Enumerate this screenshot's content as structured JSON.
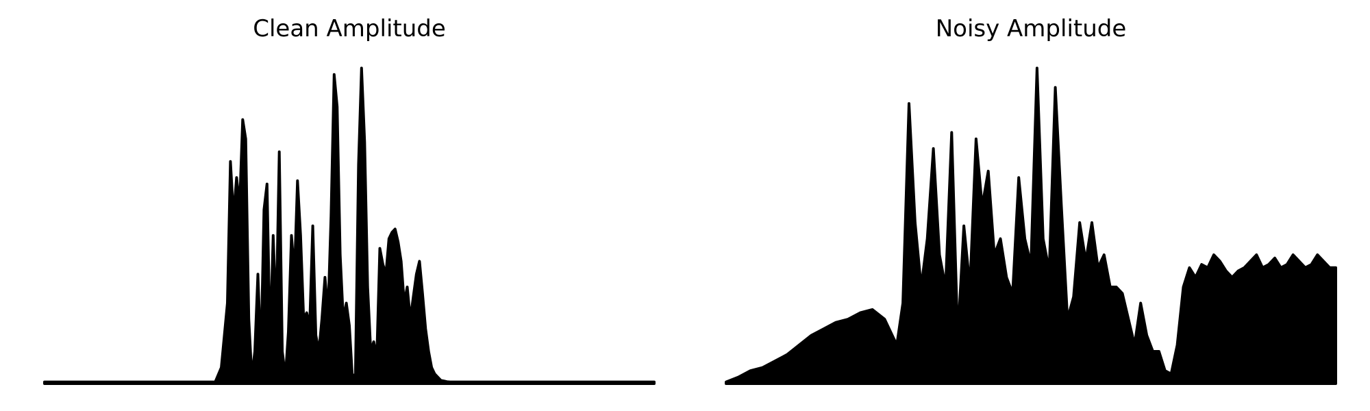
{
  "chart_data": [
    {
      "type": "area",
      "title": "Clean Amplitude",
      "xlabel": "",
      "ylabel": "",
      "axes_visible": false,
      "grid": false,
      "color": "#000000",
      "ylim": [
        0,
        1.0
      ],
      "x": [
        0,
        0.28,
        0.29,
        0.3,
        0.305,
        0.31,
        0.315,
        0.32,
        0.325,
        0.33,
        0.335,
        0.34,
        0.345,
        0.35,
        0.355,
        0.36,
        0.365,
        0.37,
        0.375,
        0.38,
        0.385,
        0.39,
        0.395,
        0.4,
        0.405,
        0.41,
        0.415,
        0.42,
        0.425,
        0.43,
        0.435,
        0.44,
        0.445,
        0.45,
        0.455,
        0.46,
        0.465,
        0.47,
        0.475,
        0.48,
        0.485,
        0.49,
        0.495,
        0.5,
        0.505,
        0.51,
        0.515,
        0.52,
        0.525,
        0.53,
        0.535,
        0.54,
        0.545,
        0.55,
        0.555,
        0.56,
        0.565,
        0.57,
        0.575,
        0.58,
        0.585,
        0.59,
        0.595,
        0.6,
        0.605,
        0.61,
        0.615,
        0.62,
        0.625,
        0.63,
        0.635,
        0.64,
        0.645,
        0.65,
        0.655,
        0.66,
        0.665,
        0.67,
        0.675,
        0.68,
        0.685,
        0.69,
        0.695,
        0.7,
        0.705,
        0.71,
        0.715,
        0.72,
        0.725,
        0.73,
        0.735,
        0.74,
        0.745,
        0.75,
        0.755,
        0.76,
        0.765,
        0.77,
        0.775,
        0.78,
        0.785,
        0.79,
        0.795,
        0.8,
        0.805,
        0.81,
        0.815,
        0.82,
        0.825,
        0.83,
        0.835,
        0.84,
        0.845,
        0.85,
        0.855,
        0.86,
        0.865,
        0.87,
        0.875,
        0.88,
        1.0
      ],
      "y": [
        0.005,
        0.005,
        0.05,
        0.25,
        0.69,
        0.52,
        0.64,
        0.55,
        0.82,
        0.76,
        0.2,
        0.02,
        0.1,
        0.34,
        0.08,
        0.54,
        0.62,
        0.12,
        0.46,
        0.2,
        0.72,
        0.1,
        0.02,
        0.16,
        0.46,
        0.34,
        0.63,
        0.46,
        0.2,
        0.22,
        0.18,
        0.49,
        0.15,
        0.1,
        0.2,
        0.33,
        0.22,
        0.52,
        0.96,
        0.86,
        0.4,
        0.2,
        0.25,
        0.18,
        0.02,
        0.03,
        0.68,
        0.98,
        0.75,
        0.3,
        0.1,
        0.13,
        0.08,
        0.42,
        0.37,
        0.34,
        0.45,
        0.47,
        0.48,
        0.44,
        0.38,
        0.25,
        0.3,
        0.2,
        0.27,
        0.34,
        0.38,
        0.28,
        0.17,
        0.1,
        0.05,
        0.03,
        0.02,
        0.01,
        0.008,
        0.006,
        0.005,
        0.005,
        0.005,
        0.005,
        0.005,
        0.005,
        0.005,
        0.005,
        0.005,
        0.005,
        0.005,
        0.005,
        0.005,
        0.005,
        0.005,
        0.005,
        0.005,
        0.005,
        0.005,
        0.005,
        0.005,
        0.005,
        0.005,
        0.005,
        0.005,
        0.005,
        0.005,
        0.005,
        0.005,
        0.005,
        0.005,
        0.005,
        0.005,
        0.005,
        0.005,
        0.005,
        0.005,
        0.005,
        0.005,
        0.005,
        0.005,
        0.005,
        0.005,
        0.005,
        0.005
      ]
    },
    {
      "type": "area",
      "title": "Noisy Amplitude",
      "xlabel": "",
      "ylabel": "",
      "axes_visible": false,
      "grid": false,
      "color": "#000000",
      "ylim": [
        0,
        1.0
      ],
      "x": [
        0,
        0.02,
        0.04,
        0.06,
        0.08,
        0.1,
        0.12,
        0.14,
        0.16,
        0.18,
        0.2,
        0.22,
        0.24,
        0.26,
        0.28,
        0.29,
        0.3,
        0.31,
        0.32,
        0.33,
        0.34,
        0.35,
        0.36,
        0.37,
        0.38,
        0.39,
        0.4,
        0.41,
        0.42,
        0.43,
        0.44,
        0.45,
        0.46,
        0.47,
        0.48,
        0.49,
        0.5,
        0.51,
        0.52,
        0.53,
        0.54,
        0.55,
        0.56,
        0.57,
        0.58,
        0.59,
        0.6,
        0.61,
        0.62,
        0.63,
        0.64,
        0.65,
        0.66,
        0.67,
        0.68,
        0.69,
        0.7,
        0.71,
        0.72,
        0.73,
        0.74,
        0.75,
        0.76,
        0.77,
        0.78,
        0.79,
        0.8,
        0.81,
        0.82,
        0.83,
        0.84,
        0.85,
        0.86,
        0.87,
        0.88,
        0.89,
        0.9,
        0.91,
        0.92,
        0.93,
        0.94,
        0.95,
        0.96,
        0.97,
        0.98,
        0.99,
        1.0
      ],
      "y": [
        0.005,
        0.02,
        0.04,
        0.05,
        0.07,
        0.09,
        0.12,
        0.15,
        0.17,
        0.19,
        0.2,
        0.22,
        0.23,
        0.2,
        0.12,
        0.25,
        0.87,
        0.5,
        0.3,
        0.45,
        0.73,
        0.4,
        0.3,
        0.78,
        0.14,
        0.49,
        0.3,
        0.76,
        0.55,
        0.66,
        0.4,
        0.45,
        0.33,
        0.28,
        0.64,
        0.45,
        0.37,
        0.98,
        0.45,
        0.35,
        0.92,
        0.55,
        0.2,
        0.27,
        0.5,
        0.38,
        0.5,
        0.36,
        0.4,
        0.3,
        0.3,
        0.28,
        0.2,
        0.12,
        0.25,
        0.15,
        0.1,
        0.1,
        0.04,
        0.03,
        0.12,
        0.3,
        0.36,
        0.33,
        0.37,
        0.36,
        0.4,
        0.38,
        0.35,
        0.33,
        0.35,
        0.36,
        0.38,
        0.4,
        0.36,
        0.37,
        0.39,
        0.36,
        0.37,
        0.4,
        0.38,
        0.36,
        0.37,
        0.4,
        0.38,
        0.36,
        0.36
      ]
    }
  ]
}
